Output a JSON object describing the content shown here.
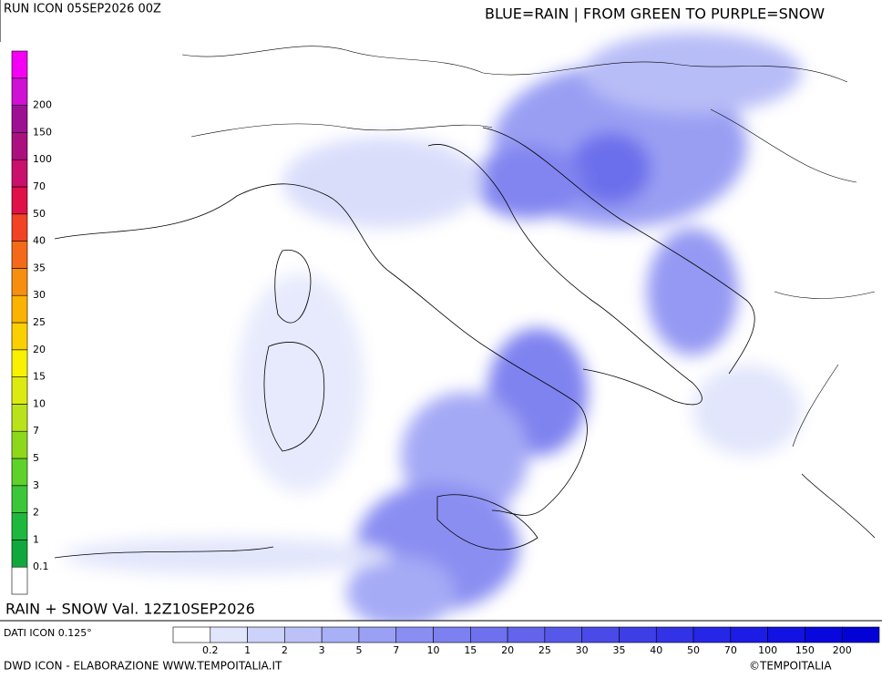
{
  "header": {
    "run": "RUN ICON 05SEP2026 00Z",
    "legend_title": "BLUE=RAIN | FROM GREEN TO PURPLE=SNOW"
  },
  "snow_scale": {
    "labels": [
      0.1,
      1,
      2,
      3,
      5,
      7,
      10,
      15,
      20,
      25,
      30,
      35,
      40,
      50,
      70,
      100,
      150,
      200
    ],
    "colors": [
      "#ffffff",
      "#10a83c",
      "#1eb83e",
      "#3cc63a",
      "#5ed22a",
      "#8ed81c",
      "#bae21a",
      "#dcea10",
      "#f8f200",
      "#fcd000",
      "#fcb200",
      "#f88e10",
      "#f46a1a",
      "#f04424",
      "#e01048",
      "#c8106c",
      "#ac1080",
      "#9c1094",
      "#d010d4",
      "#f400f4"
    ]
  },
  "rain_scale": {
    "labels": [
      0.2,
      1,
      2,
      3,
      5,
      7,
      10,
      15,
      20,
      25,
      30,
      35,
      40,
      50,
      70,
      100,
      150,
      200
    ],
    "colors": [
      "#ffffff",
      "#e2e6fc",
      "#ccd2fa",
      "#bcc2f8",
      "#a8b0f6",
      "#9aa0f4",
      "#8a8ef2",
      "#7c80f0",
      "#6e70ee",
      "#6264ec",
      "#5658ea",
      "#4a4ae8",
      "#3e3ee6",
      "#3232e6",
      "#2626e6",
      "#1c1ce4",
      "#1212e2",
      "#0808de",
      "#0202d6"
    ]
  },
  "valid": "RAIN + SNOW Val. 12Z10SEP2026",
  "footer": {
    "data_source": "DATI ICON 0.125°",
    "credit": "DWD ICON - ELABORAZIONE WWW.TEMPOITALIA.IT",
    "brand": "©TEMPOITALIA"
  }
}
